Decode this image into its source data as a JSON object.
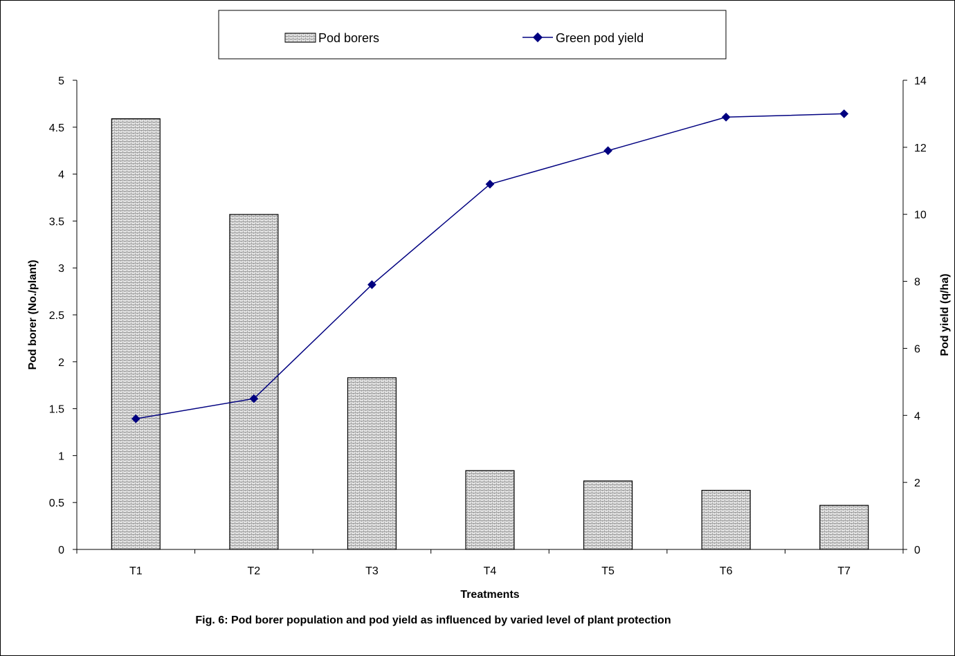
{
  "chart_data": {
    "type": "bar",
    "categories": [
      "T1",
      "T2",
      "T3",
      "T4",
      "T5",
      "T6",
      "T7"
    ],
    "series": [
      {
        "name": "Pod borers",
        "type": "bar",
        "axis": "left",
        "values": [
          4.59,
          3.57,
          1.83,
          0.84,
          0.73,
          0.63,
          0.47
        ]
      },
      {
        "name": "Green pod yield",
        "type": "line",
        "axis": "right",
        "values": [
          3.9,
          4.5,
          7.9,
          10.9,
          11.9,
          12.9,
          13.0
        ]
      }
    ],
    "xlabel": "Treatments",
    "ylabel": "Pod borer (No./plant)",
    "y2label": "Pod yield (q/ha)",
    "ylim": [
      0,
      5
    ],
    "y2lim": [
      0,
      14
    ],
    "yticks": [
      "0",
      "0.5",
      "1",
      "1.5",
      "2",
      "2.5",
      "3",
      "3.5",
      "4",
      "4.5",
      "5"
    ],
    "y2ticks": [
      "0",
      "2",
      "4",
      "6",
      "8",
      "10",
      "12",
      "14"
    ],
    "caption": "Fig. 6: Pod borer population and pod yield as influenced by varied level of plant protection",
    "legend_position": "top",
    "grid": false,
    "colors": {
      "bar_fill": "#d6d6d6",
      "bar_stroke": "#000000",
      "line": "#000080"
    }
  }
}
